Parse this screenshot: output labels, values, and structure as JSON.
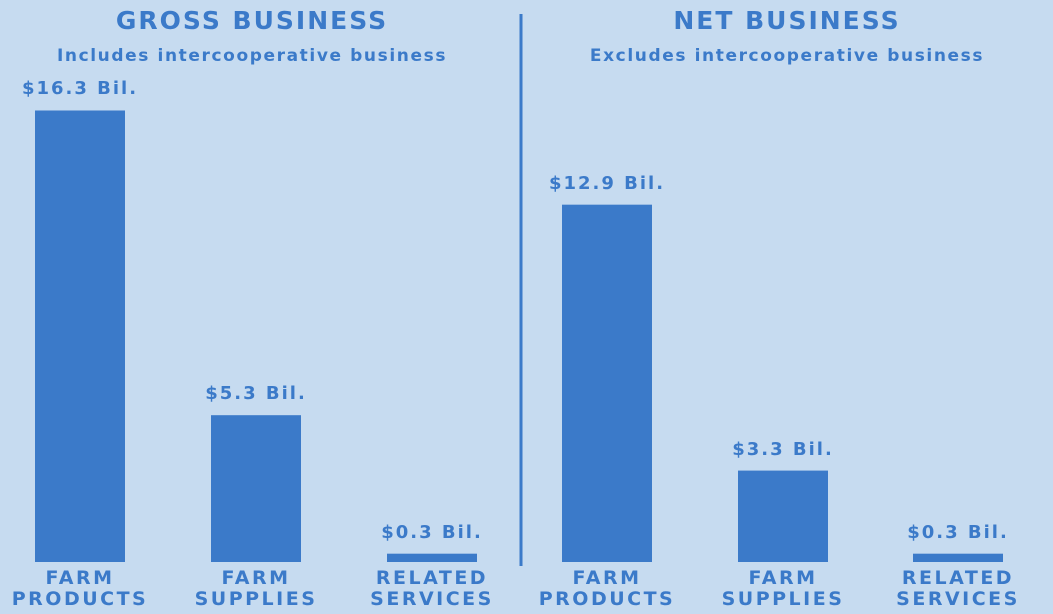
{
  "chart_data": [
    {
      "type": "bar",
      "title": "GROSS BUSINESS",
      "subtitle": "Includes intercooperative business",
      "categories": [
        "FARM PRODUCTS",
        "FARM SUPPLIES",
        "RELATED SERVICES"
      ],
      "values": [
        16.3,
        5.3,
        0.3
      ],
      "value_labels": [
        "$16.3 Bil.",
        "$5.3 Bil.",
        "$0.3 Bil."
      ],
      "color": "#3b7ac9"
    },
    {
      "type": "bar",
      "title": "NET BUSINESS",
      "subtitle": "Excludes intercooperative business",
      "categories": [
        "FARM PRODUCTS",
        "FARM SUPPLIES",
        "RELATED SERVICES"
      ],
      "values": [
        12.9,
        3.3,
        0.3
      ],
      "value_labels": [
        "$12.9 Bil.",
        "$3.3 Bil.",
        "$0.3 Bil."
      ],
      "color": "#3b7ac9"
    }
  ]
}
